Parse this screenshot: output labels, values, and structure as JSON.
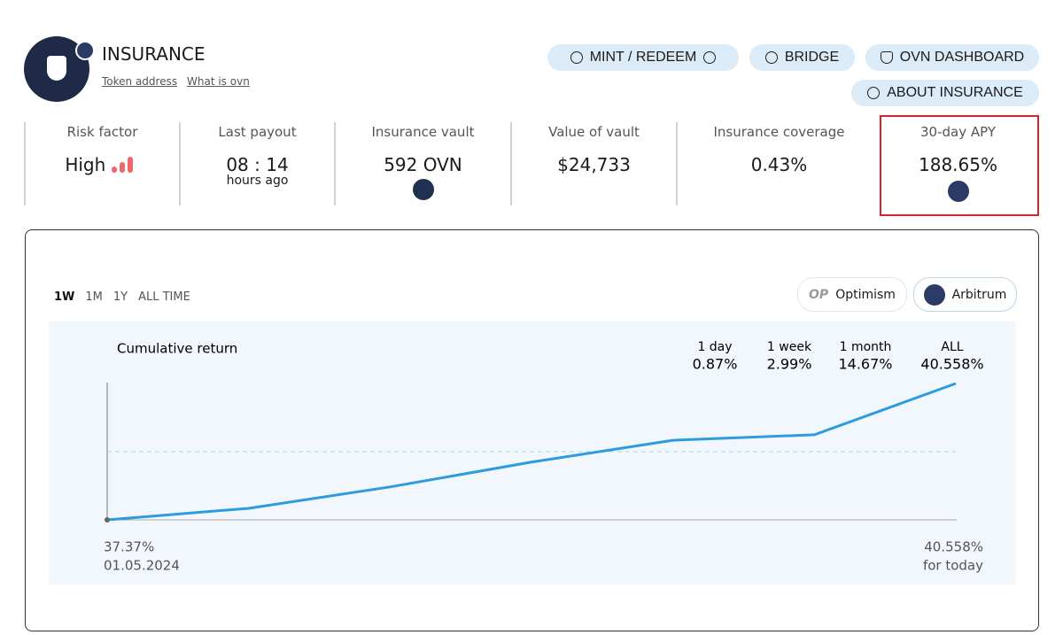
{
  "header": {
    "title": "INSURANCE",
    "links": [
      "Token address",
      "What is ovn"
    ]
  },
  "buttons": [
    "MINT / REDEEM",
    "BRIDGE",
    "OVN DASHBOARD",
    "ABOUT INSURANCE"
  ],
  "metrics": [
    {
      "label": "Risk factor",
      "value": "High"
    },
    {
      "label": "Last payout",
      "value": "08 : 14",
      "sub": "hours ago"
    },
    {
      "label": "Insurance vault",
      "value": "592 OVN"
    },
    {
      "label": "Value of vault",
      "value": "$24,733"
    },
    {
      "label": "Insurance coverage",
      "value": "0.43%"
    },
    {
      "label": "30-day APY",
      "value": "188.65%"
    }
  ],
  "periods": [
    "1W",
    "1M",
    "1Y",
    "ALL TIME"
  ],
  "networks": [
    {
      "icon": "OP",
      "name": "Optimism"
    },
    {
      "name": "Arbitrum"
    }
  ],
  "chart_data": {
    "type": "line",
    "title": "Cumulative return",
    "values": [
      37.37,
      37.64,
      38.14,
      38.72,
      39.23,
      39.36,
      40.558
    ],
    "ylim": [
      37.37,
      40.558
    ],
    "color": "#2d9be0",
    "returns": [
      {
        "label": "1 day",
        "value": "0.87%"
      },
      {
        "label": "1 week",
        "value": "2.99%"
      },
      {
        "label": "1 month",
        "value": "14.67%"
      },
      {
        "label": "ALL",
        "value": "40.558%"
      }
    ],
    "start_label": "37.37%",
    "start_date": "01.05.2024",
    "end_label": "40.558%",
    "end_note": "for today"
  }
}
